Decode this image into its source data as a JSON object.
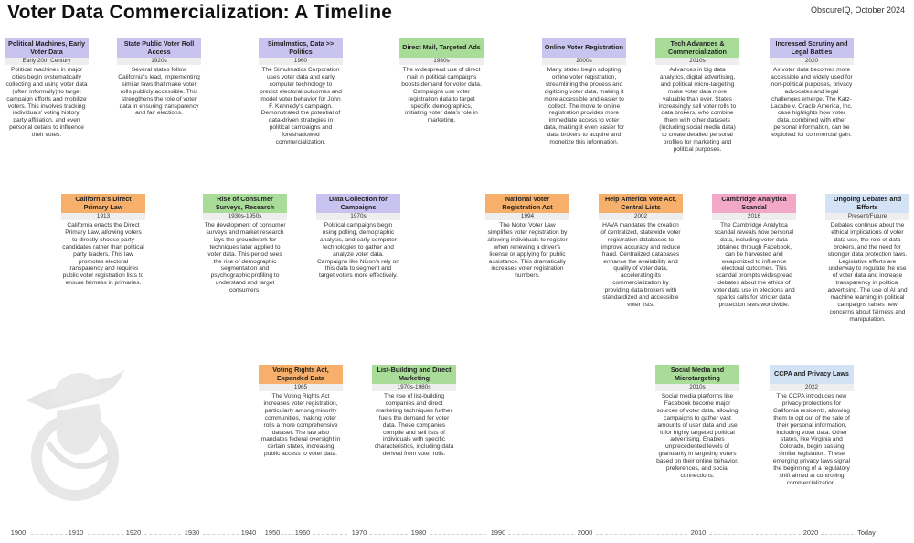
{
  "header": {
    "title": "Voter Data Commercialization:  A Timeline",
    "byline": "ObscureIQ, October 2024"
  },
  "cards": [
    {
      "key": "political-machines",
      "color": "#c9c3ef",
      "title": "Political Machines, Early Voter Data",
      "date": "Early 20th Century",
      "text": "Political machines in major cities begin systematically collecting and using voter data (often informally) to target campaign efforts and mobilize voters.  This involves tracking individuals' voting history, party affiliation, and even personal details to influence their votes."
    },
    {
      "key": "state-public-voter-roll",
      "color": "#c9c3ef",
      "title": "State Public Voter Roll Access",
      "date": "1920s",
      "text": "Several states follow California's lead, implementing similar laws that make voter rolls publicly accessible. This strengthens the role of voter data in ensuring transparency and fair elections."
    },
    {
      "key": "simulmatics",
      "color": "#c9c3ef",
      "title": "Simulmatics, Data >> Politics",
      "date": "1960",
      "text": "The Simulmatics Corporation uses voter data and early computer technology to predict electoral outcomes and model voter behavior for John F. Kennedy's campaign. Demonstrated the potential of data-driven strategies in political campaigns and foreshadowed commercialization."
    },
    {
      "key": "direct-mail",
      "color": "#a8dc98",
      "title": "Direct Mail, Targeted Ads",
      "date": "1980s",
      "text": "The widespread use of direct mail in political campaigns boosts demand for voter data. Campaigns use voter registration data to target specific demographics, initiating voter data's role in marketing."
    },
    {
      "key": "online-voter-registration",
      "color": "#c9c3ef",
      "title": "Online Voter Registration",
      "date": "2000s",
      "text": "Many states begin adopting online voter registration, streamlining the process and digitizing voter data, making it more accessible and easier to collect.  The move to online registration provides more immediate access to voter data, making it even easier for data brokers to acquire and monetize this information."
    },
    {
      "key": "tech-advances",
      "color": "#a8dc98",
      "title": "Tech Advances & Commercialization",
      "date": "2010s",
      "text": "Advances in big data analytics, digital advertising, and political micro-targeting make voter data more valuable than ever. States increasingly sell voter rolls to data brokers, who combine them with other datasets (including social media data) to create detailed personal profiles for marketing and political purposes."
    },
    {
      "key": "increased-scrutiny",
      "color": "#c9c3ef",
      "title": "Increased Scrutiny and Legal Battles",
      "date": "2020",
      "text": "As voter data becomes more accessible and widely used for non-political purposes, privacy advocates and legal challenges emerge. The Katz-Lacabe v. Oracle America, Inc. case highlights how voter data, combined with other personal information, can be exploited for commercial gain."
    },
    {
      "key": "california-direct-primary",
      "color": "#f6b06b",
      "title": "California's Direct Primary Law",
      "date": "1913",
      "text": "California enacts the Direct Primary Law, allowing voters to directly choose party candidates rather than political party leaders. This law promotes electoral transparency and requires public voter registration lists to ensure fairness in primaries."
    },
    {
      "key": "consumer-surveys",
      "color": "#a8dc98",
      "title": "Rise of Consumer Surveys, Research",
      "date": "1930s-1950s",
      "text": "The development of consumer surveys and market research lays the groundwork for techniques later applied to voter data. This period sees the rise of demographic segmentation and psychographic profiling to understand and target consumers."
    },
    {
      "key": "data-collection-campaigns",
      "color": "#c9c3ef",
      "title": "Data Collection for Campaigns",
      "date": "1970s",
      "text": "Political campaigns begin using polling, demographic analysis, and early computer technologies to gather and analyze voter data. Campaigns like Nixon's rely on this data to segment and target voters more effectively."
    },
    {
      "key": "national-voter-registration-act",
      "color": "#f6b06b",
      "title": "National Voter Registration Act",
      "date": "1994",
      "text": "The Motor Voter Law simplifies voter registration by allowing individuals to register when renewing a driver's license or applying for public assistance. This dramatically increases voter registration numbers."
    },
    {
      "key": "help-america-vote-act",
      "color": "#f6b06b",
      "title": "Help America Vote Act, Central Lists",
      "date": "2002",
      "text": "HAVA mandates the creation of centralized, statewide voter registration databases to improve accuracy and reduce fraud. Centralized databases enhance the availability and quality of voter data, accelerating its commercialization by providing data brokers with standardized and accessible voter lists."
    },
    {
      "key": "cambridge-analytica",
      "color": "#f3a8c8",
      "title": "Cambridge Analytica Scandal",
      "date": "2016",
      "text": "The Cambridge Analytica scandal reveals how personal data, including voter data obtained through Facebook, can be harvested and weaponized to influence electoral outcomes.  This scandal prompts widespread debates about the ethics of voter data use in elections and sparks calls for stricter data protection laws worldwide."
    },
    {
      "key": "ongoing-debates",
      "color": "#d3e2f5",
      "title": "Ongoing Debates and Efforts",
      "date": "Present/Future",
      "text": "Debates continue about the ethical implications of voter data use, the role of data brokers, and the need for stronger data protection laws.  Legislative efforts are underway to regulate the use of voter data and increase transparency in political advertising.  The use of AI and machine learning in political campaigns raises new concerns about fairness and manipulation."
    },
    {
      "key": "voting-rights-act",
      "color": "#f6b06b",
      "title": "Voting Rights Act, Expanded Data",
      "date": "1965",
      "text": "The Voting Rights Act increases voter registration, particularly among minority communities, making voter rolls a more comprehensive dataset. The law also mandates federal oversight in certain states, increasing public access to voter data."
    },
    {
      "key": "list-building",
      "color": "#a8dc98",
      "title": "List-Building and Direct Marketing",
      "date": "1970s-1980s",
      "text": "The rise of list-building companies and direct marketing techniques further fuels the demand for voter data. These companies compile and sell lists of individuals with specific characteristics, including data derived from voter rolls."
    },
    {
      "key": "social-media",
      "color": "#a8dc98",
      "title": "Social Media and Microtargeting",
      "date": "2010s",
      "text": "Social media platforms like Facebook become major sources of voter data, allowing campaigns to gather vast amounts of user data and use it for highly targeted political advertising.  Enables unprecedented levels of granularity in targeting voters based on their online behavior, preferences, and social connections."
    },
    {
      "key": "ccpa",
      "color": "#d3e2f5",
      "title": "CCPA and Privacy Laws",
      "date": "2022",
      "text": "The CCPA introduces new privacy protections for California residents, allowing them to opt out of the sale of their personal information, including voter data. Other states, like Virginia and Colorado, begin passing similar legislation.  These emerging privacy laws signal the beginning of a regulatory shift aimed at controlling commercialization."
    }
  ],
  "axis": {
    "labels": [
      "1900",
      "1910",
      "1920",
      "1930",
      "1940",
      "1950",
      "1960",
      "1970",
      "1980",
      "1990",
      "2000",
      "2010",
      "2020",
      "Today"
    ]
  }
}
